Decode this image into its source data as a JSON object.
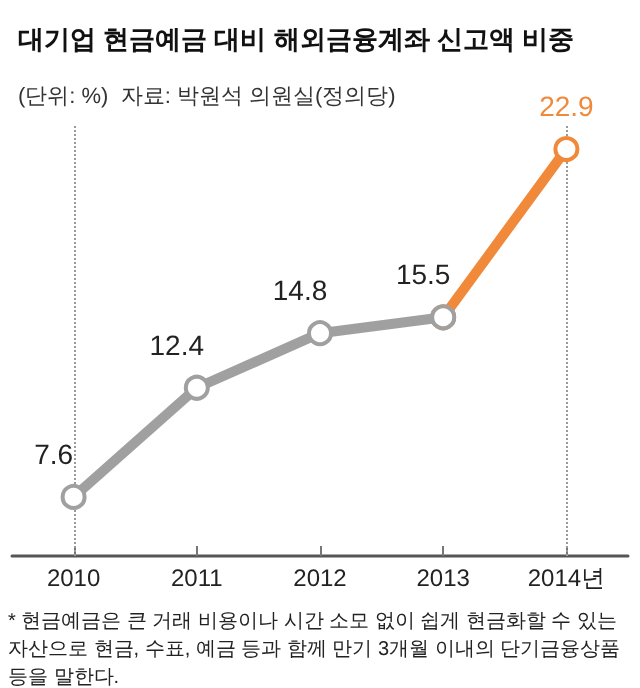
{
  "chart_data": {
    "type": "line",
    "title": "대기업 현금예금 대비 해외금융계좌 신고액 비중",
    "subtitle": "(단위: %)  자료: 박원석 의원실(정의당)",
    "categories": [
      "2010",
      "2011",
      "2012",
      "2013",
      "2014년"
    ],
    "series": [
      {
        "color": "#a0a0a0",
        "values": [
          7.6,
          12.4,
          14.8,
          15.5,
          null
        ],
        "value_labels": [
          "7.6",
          "12.4",
          "14.8",
          "15.5",
          null
        ]
      },
      {
        "color": "#f08a3a",
        "values": [
          null,
          null,
          null,
          15.5,
          22.9
        ],
        "value_labels": [
          null,
          null,
          null,
          null,
          "22.9"
        ]
      }
    ],
    "ylim": [
      5,
      24
    ],
    "tick_labels": "x",
    "grid": false,
    "marker": "circle",
    "line_style": "solid",
    "ref_lines": [
      {
        "axis": "x",
        "value": "2010",
        "color": "#999999",
        "line_style": "dotted"
      },
      {
        "axis": "x",
        "value": "2014년",
        "color": "#999999",
        "line_style": "dotted"
      }
    ],
    "annotations": [
      "* 현금예금은 큰 거래 비용이나 시간 소모 없이 쉽게 현금화할 수 있는 자산으로 현금, 수표, 예금 등과 함께 만기 3개월 이내의 단기금융상품 등을 말한다."
    ]
  }
}
